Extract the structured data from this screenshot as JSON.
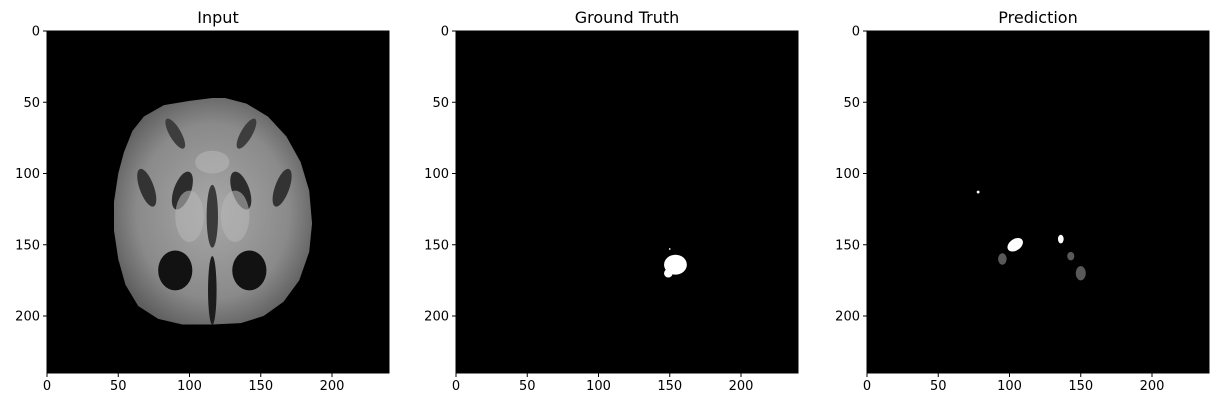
{
  "chart_data": [
    {
      "type": "heatmap",
      "title": "Input",
      "image_size": [
        240,
        240
      ],
      "xticks": [
        0,
        50,
        100,
        150,
        200
      ],
      "yticks": [
        0,
        50,
        100,
        150,
        200
      ],
      "xlim": [
        0,
        240
      ],
      "ylim": [
        240,
        0
      ],
      "colormap": "gray",
      "content": "axial brain MRI slice"
    },
    {
      "type": "heatmap",
      "title": "Ground Truth",
      "image_size": [
        240,
        240
      ],
      "xticks": [
        0,
        50,
        100,
        150,
        200
      ],
      "yticks": [
        0,
        50,
        100,
        150,
        200
      ],
      "xlim": [
        0,
        240
      ],
      "ylim": [
        240,
        0
      ],
      "colormap": "gray",
      "regions": [
        {
          "label": "white",
          "x": 154,
          "y": 164,
          "rx": 8,
          "ry": 7
        },
        {
          "label": "white",
          "x": 149,
          "y": 170,
          "rx": 3,
          "ry": 3
        },
        {
          "label": "white",
          "x": 150,
          "y": 153,
          "rx": 0.6,
          "ry": 0.6
        }
      ]
    },
    {
      "type": "heatmap",
      "title": "Prediction",
      "image_size": [
        240,
        240
      ],
      "xticks": [
        0,
        50,
        100,
        150,
        200
      ],
      "yticks": [
        0,
        50,
        100,
        150,
        200
      ],
      "xlim": [
        0,
        240
      ],
      "ylim": [
        240,
        0
      ],
      "colormap": "gray",
      "regions": [
        {
          "label": "white",
          "x": 104,
          "y": 150,
          "rx": 6,
          "ry": 4,
          "rot": -35
        },
        {
          "label": "gray",
          "x": 95,
          "y": 160,
          "rx": 3,
          "ry": 4
        },
        {
          "label": "white",
          "x": 136,
          "y": 146,
          "rx": 2,
          "ry": 3
        },
        {
          "label": "gray",
          "x": 143,
          "y": 158,
          "rx": 2.5,
          "ry": 3
        },
        {
          "label": "gray",
          "x": 150,
          "y": 170,
          "rx": 3.5,
          "ry": 5
        },
        {
          "label": "white",
          "x": 78,
          "y": 113,
          "rx": 1,
          "ry": 1
        }
      ]
    }
  ],
  "colors": {
    "background": "#000000",
    "white": "#ffffff",
    "gray": "#595959"
  }
}
